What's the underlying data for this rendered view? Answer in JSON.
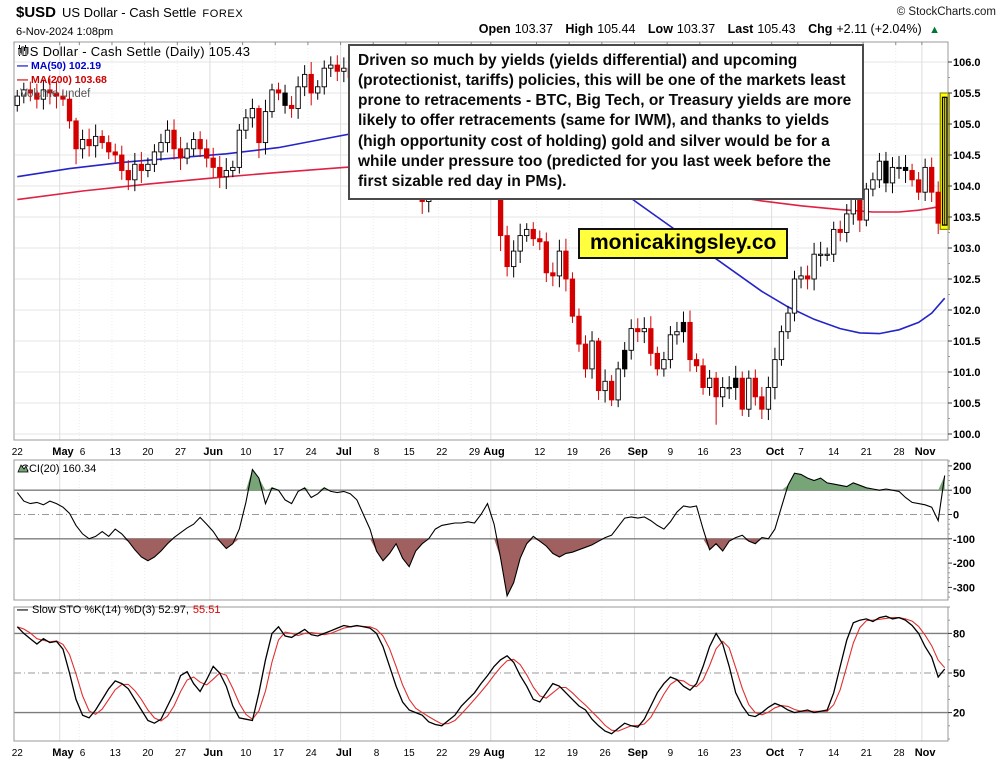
{
  "header": {
    "symbol": "$USD",
    "name": "US Dollar - Cash Settle",
    "exchange": "FOREX",
    "copyright": "© StockCharts.com",
    "datetime": "6-Nov-2024 1:08pm",
    "quote": {
      "open_label": "Open",
      "open": "103.37",
      "high_label": "High",
      "high": "105.44",
      "low_label": "Low",
      "low": "103.37",
      "last_label": "Last",
      "last": "105.43",
      "chg_label": "Chg",
      "chg": "+2.11 (+2.04%)",
      "arrow": "▲",
      "arrow_color": "#007732"
    }
  },
  "legend": {
    "title": "US Dollar - Cash Settle (Daily) 105.43",
    "ma50": "MA(50) 102.19",
    "ma200": "MA(200) 103.68",
    "volume": "Volume undef",
    "ma50_color": "#0000cc",
    "ma200_color": "#cc0000"
  },
  "cci": {
    "label": "CCI(20) 160.34"
  },
  "sto": {
    "label_main": "Slow STO %K(14) %D(3) 52.97,",
    "d_value": "55.51"
  },
  "annotation": {
    "text": "Driven so much by yields (yields differential) and upcoming (protectionist, tariffs) policies, this will be one of the markets least prone to retracements - BTC, Big Tech, or Treasury yields are more likely to offer retracements (same for IWM), and thanks to yields (high opportunity cost of holding) gold and silver would be for a while under pressure too (predicted for you last week before the first sizable red day in PMs)."
  },
  "watermark": {
    "text": "monicakingsley.co",
    "bg": "#ffff3d"
  },
  "colors": {
    "grid": "#e6e6e6",
    "month_grid": "#dddddd",
    "week_dot": "#ececec",
    "frame": "#999999",
    "axis_text": "#000000",
    "candle_up_fill": "#ffffff",
    "candle_up_stroke": "#000000",
    "candle_down": "#d40000",
    "candle_black": "#000000",
    "ma50": "#2424c8",
    "ma200": "#dd2244",
    "cci_line": "#000000",
    "cci_green": "#78a578",
    "cci_maroon": "#a06060",
    "threshold": "#7d7d7d",
    "mid_dashdot": "#999999",
    "sto_k": "#000000",
    "sto_d": "#e03030",
    "highlight_fill": "#ffff00",
    "highlight_stroke": "#8b8b00"
  },
  "chart_data": [
    {
      "type": "candlestick",
      "title": "US Dollar - Cash Settle (Daily)",
      "last": 105.43,
      "ylabel": "price",
      "ylim": [
        100.0,
        106.0
      ],
      "yticks": [
        106.0,
        105.5,
        105.0,
        104.5,
        104.0,
        103.5,
        103.0,
        102.5,
        102.0,
        101.5,
        101.0,
        100.5,
        100.0
      ],
      "xticks": [
        {
          "label": "22",
          "i": 0,
          "bold": false
        },
        {
          "label": "May",
          "i": 7,
          "bold": true
        },
        {
          "label": "6",
          "i": 10,
          "bold": false
        },
        {
          "label": "13",
          "i": 15,
          "bold": false
        },
        {
          "label": "20",
          "i": 20,
          "bold": false
        },
        {
          "label": "27",
          "i": 25,
          "bold": false
        },
        {
          "label": "Jun",
          "i": 30,
          "bold": true
        },
        {
          "label": "10",
          "i": 35,
          "bold": false
        },
        {
          "label": "17",
          "i": 40,
          "bold": false
        },
        {
          "label": "24",
          "i": 45,
          "bold": false
        },
        {
          "label": "Jul",
          "i": 50,
          "bold": true
        },
        {
          "label": "8",
          "i": 55,
          "bold": false
        },
        {
          "label": "15",
          "i": 60,
          "bold": false
        },
        {
          "label": "22",
          "i": 65,
          "bold": false
        },
        {
          "label": "29",
          "i": 70,
          "bold": false
        },
        {
          "label": "Aug",
          "i": 73,
          "bold": true
        },
        {
          "label": "12",
          "i": 80,
          "bold": false
        },
        {
          "label": "19",
          "i": 85,
          "bold": false
        },
        {
          "label": "26",
          "i": 90,
          "bold": false
        },
        {
          "label": "Sep",
          "i": 95,
          "bold": true
        },
        {
          "label": "9",
          "i": 100,
          "bold": false
        },
        {
          "label": "16",
          "i": 105,
          "bold": false
        },
        {
          "label": "23",
          "i": 110,
          "bold": false
        },
        {
          "label": "Oct",
          "i": 116,
          "bold": true
        },
        {
          "label": "7",
          "i": 120,
          "bold": false
        },
        {
          "label": "14",
          "i": 125,
          "bold": false
        },
        {
          "label": "21",
          "i": 130,
          "bold": false
        },
        {
          "label": "28",
          "i": 135,
          "bold": false
        },
        {
          "label": "Nov",
          "i": 139,
          "bold": true
        }
      ],
      "month_start_indices": [
        7,
        30,
        50,
        73,
        95,
        116,
        139
      ],
      "first_open": 105.3,
      "wick_range": 0.1,
      "closes": [
        105.45,
        105.55,
        105.5,
        105.4,
        105.55,
        105.5,
        105.45,
        105.4,
        105.05,
        104.6,
        104.75,
        104.65,
        104.8,
        104.7,
        104.55,
        104.5,
        104.25,
        104.1,
        104.35,
        104.25,
        104.35,
        104.55,
        104.7,
        104.9,
        104.6,
        104.45,
        104.6,
        104.75,
        104.6,
        104.45,
        104.3,
        104.15,
        104.25,
        104.3,
        104.9,
        105.1,
        105.25,
        104.7,
        105.2,
        105.55,
        105.5,
        105.3,
        105.25,
        105.6,
        105.8,
        105.5,
        105.6,
        105.9,
        105.95,
        105.85,
        105.9,
        105.75,
        105.4,
        105.15,
        104.9,
        105.0,
        105.1,
        104.95,
        104.45,
        104.1,
        104.3,
        104.25,
        103.75,
        104.2,
        104.4,
        104.3,
        104.45,
        104.4,
        104.35,
        104.3,
        104.55,
        104.5,
        104.05,
        104.3,
        103.2,
        102.7,
        102.95,
        103.2,
        103.3,
        103.15,
        103.1,
        102.6,
        102.55,
        102.95,
        102.5,
        101.9,
        101.45,
        101.05,
        101.5,
        100.7,
        100.85,
        100.55,
        101.05,
        101.35,
        101.7,
        101.65,
        101.7,
        101.3,
        101.05,
        101.2,
        101.6,
        101.65,
        101.8,
        101.2,
        101.1,
        100.75,
        100.9,
        100.6,
        100.75,
        100.75,
        100.9,
        100.4,
        100.9,
        100.6,
        100.4,
        100.75,
        101.2,
        101.65,
        101.95,
        102.5,
        102.55,
        102.5,
        102.9,
        102.9,
        102.9,
        103.3,
        103.25,
        103.55,
        103.8,
        103.45,
        103.95,
        104.1,
        104.4,
        104.05,
        104.3,
        104.3,
        104.25,
        104.1,
        103.9,
        104.3,
        103.9,
        103.4,
        105.43
      ],
      "candle_overrides": {
        "9": [
          105.05,
          105.1,
          104.35,
          104.6
        ],
        "34": [
          104.3,
          105.0,
          104.2,
          104.9
        ],
        "37": [
          105.25,
          105.3,
          104.45,
          104.7
        ],
        "44": [
          105.6,
          105.95,
          105.45,
          105.8
        ],
        "62": [
          104.25,
          104.3,
          103.55,
          103.75
        ],
        "74": [
          104.3,
          104.4,
          102.95,
          103.2
        ],
        "89": [
          101.5,
          101.55,
          100.55,
          100.7
        ],
        "107": [
          100.9,
          101.0,
          100.15,
          100.6
        ],
        "142": [
          103.37,
          105.44,
          103.37,
          105.43
        ]
      },
      "black_body_indices": [
        41,
        52,
        93,
        102,
        110,
        133,
        136
      ],
      "last_candle_highlight": {
        "from": 105.5,
        "to": 103.3
      },
      "series": [
        {
          "name": "MA(50)",
          "value": 102.19,
          "points": [
            [
              0,
              104.15
            ],
            [
              8,
              104.28
            ],
            [
              16,
              104.38
            ],
            [
              24,
              104.45
            ],
            [
              32,
              104.52
            ],
            [
              40,
              104.62
            ],
            [
              48,
              104.78
            ],
            [
              54,
              104.9
            ],
            [
              58,
              104.97
            ],
            [
              62,
              105.02
            ],
            [
              66,
              105.05
            ],
            [
              70,
              105.0
            ],
            [
              74,
              104.9
            ],
            [
              78,
              104.75
            ],
            [
              82,
              104.55
            ],
            [
              86,
              104.3
            ],
            [
              90,
              104.05
            ],
            [
              94,
              103.8
            ],
            [
              98,
              103.5
            ],
            [
              102,
              103.2
            ],
            [
              106,
              102.9
            ],
            [
              110,
              102.6
            ],
            [
              114,
              102.3
            ],
            [
              118,
              102.05
            ],
            [
              122,
              101.85
            ],
            [
              126,
              101.7
            ],
            [
              129,
              101.63
            ],
            [
              132,
              101.62
            ],
            [
              135,
              101.68
            ],
            [
              138,
              101.8
            ],
            [
              140,
              101.95
            ],
            [
              142,
              102.19
            ]
          ]
        },
        {
          "name": "MA(200)",
          "value": 103.68,
          "points": [
            [
              0,
              103.78
            ],
            [
              10,
              103.92
            ],
            [
              20,
              104.03
            ],
            [
              30,
              104.13
            ],
            [
              40,
              104.22
            ],
            [
              50,
              104.3
            ],
            [
              58,
              104.35
            ],
            [
              66,
              104.37
            ],
            [
              72,
              104.36
            ],
            [
              78,
              104.32
            ],
            [
              84,
              104.26
            ],
            [
              90,
              104.18
            ],
            [
              96,
              104.08
            ],
            [
              102,
              103.97
            ],
            [
              108,
              103.86
            ],
            [
              114,
              103.76
            ],
            [
              120,
              103.68
            ],
            [
              126,
              103.62
            ],
            [
              131,
              103.58
            ],
            [
              135,
              103.58
            ],
            [
              138,
              103.61
            ],
            [
              142,
              103.68
            ]
          ]
        }
      ]
    },
    {
      "type": "area-line",
      "title": "CCI(20)",
      "last": 160.34,
      "ylim": [
        -352,
        224
      ],
      "yticks": [
        200,
        100,
        0,
        -100,
        -200,
        -300
      ],
      "upper_threshold": 100,
      "lower_threshold": -100,
      "values": [
        90,
        55,
        45,
        50,
        40,
        55,
        45,
        30,
        5,
        -45,
        -80,
        -100,
        -90,
        -70,
        -90,
        -60,
        -80,
        -110,
        -145,
        -175,
        -190,
        -175,
        -150,
        -120,
        -95,
        -75,
        -55,
        -40,
        -12,
        -40,
        -70,
        -110,
        -140,
        -120,
        -60,
        50,
        185,
        150,
        45,
        110,
        100,
        60,
        45,
        95,
        110,
        70,
        85,
        110,
        95,
        90,
        95,
        85,
        60,
        0,
        -60,
        -150,
        -190,
        -160,
        -120,
        -180,
        -215,
        -150,
        -120,
        -100,
        -60,
        -45,
        -40,
        -35,
        -35,
        -30,
        -35,
        0,
        45,
        -40,
        -180,
        -335,
        -280,
        -180,
        -120,
        -90,
        -110,
        -130,
        -160,
        -175,
        -160,
        -155,
        -145,
        -135,
        -125,
        -110,
        -95,
        -85,
        -50,
        -15,
        -10,
        -15,
        -10,
        -25,
        -45,
        -60,
        -30,
        10,
        35,
        30,
        35,
        -60,
        -145,
        -120,
        -150,
        -110,
        -95,
        -85,
        -110,
        -120,
        -95,
        -100,
        -60,
        30,
        120,
        170,
        165,
        150,
        140,
        150,
        130,
        125,
        120,
        115,
        130,
        120,
        110,
        105,
        100,
        105,
        100,
        95,
        70,
        50,
        45,
        40,
        30,
        -25,
        160.34
      ]
    },
    {
      "type": "line",
      "title": "Slow STO %K(14) %D(3)",
      "k_last": 52.97,
      "d_last": 55.51,
      "ylim": [
        0,
        100
      ],
      "yticks": [
        80,
        50,
        20
      ],
      "mid_line": 50,
      "k": [
        85,
        80,
        76,
        72,
        76,
        73,
        74,
        68,
        50,
        30,
        18,
        16,
        22,
        30,
        38,
        44,
        42,
        38,
        30,
        22,
        14,
        12,
        15,
        25,
        35,
        48,
        51,
        42,
        36,
        45,
        55,
        50,
        40,
        25,
        16,
        15,
        14,
        35,
        60,
        80,
        85,
        78,
        77,
        80,
        83,
        79,
        78,
        80,
        82,
        84,
        86,
        85,
        86,
        85,
        84,
        80,
        70,
        55,
        40,
        28,
        22,
        20,
        18,
        13,
        11,
        10,
        14,
        18,
        25,
        30,
        35,
        42,
        48,
        55,
        60,
        63,
        58,
        48,
        40,
        30,
        28,
        35,
        42,
        40,
        35,
        30,
        25,
        22,
        15,
        10,
        6,
        4,
        8,
        12,
        10,
        9,
        15,
        25,
        35,
        42,
        47,
        45,
        40,
        37,
        42,
        55,
        70,
        80,
        72,
        55,
        35,
        25,
        18,
        17,
        20,
        24,
        27,
        25,
        22,
        20,
        21,
        22,
        20,
        21,
        22,
        35,
        55,
        75,
        88,
        90,
        91,
        89,
        92,
        93,
        91,
        92,
        90,
        86,
        80,
        70,
        62,
        47,
        53
      ],
      "d_is_3sma_of_k": true
    }
  ]
}
